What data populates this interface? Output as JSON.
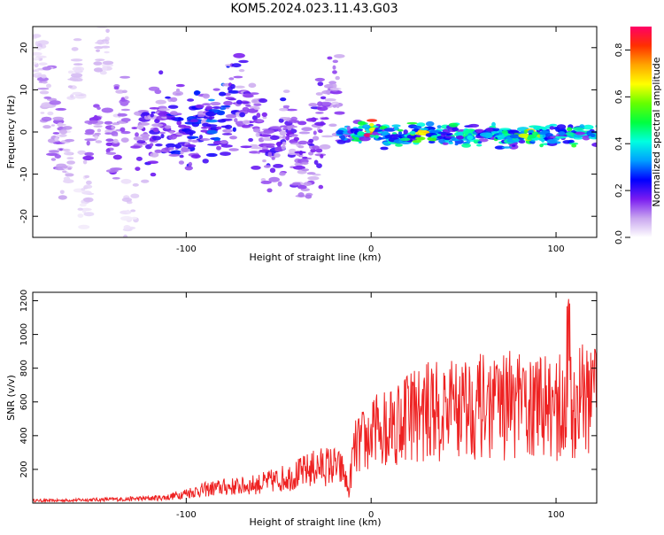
{
  "figure": {
    "title": "KOM5.2024.023.11.43.G03"
  },
  "chart_data": [
    {
      "type": "heatmap",
      "xlabel": "Height of straight line (km)",
      "ylabel": "Frequency (Hz)",
      "xlim": [
        -183,
        122
      ],
      "ylim": [
        -25,
        25
      ],
      "x_ticks": [
        -100,
        0,
        100
      ],
      "x_tick_labels": [
        "-100",
        "0",
        "100"
      ],
      "y_ticks": [
        -20,
        -10,
        0,
        10,
        20
      ],
      "y_tick_labels": [
        "-20",
        "-10",
        "0",
        "10",
        "20"
      ],
      "colorbar": {
        "label": "Normalized spectral amplitude",
        "range": [
          0,
          0.9
        ],
        "ticks": [
          0,
          0.2,
          0.4,
          0.6,
          0.8
        ],
        "tick_labels": [
          "0.0",
          "0.2",
          "0.4",
          "0.6",
          "0.8"
        ],
        "colormap": [
          "#ffffff",
          "#c9a6ef",
          "#7a1cf0",
          "#0000ff",
          "#00a0ff",
          "#00ffe0",
          "#00ff40",
          "#66ff00",
          "#ffff00",
          "#ffa500",
          "#ff3000",
          "#ff0066"
        ]
      },
      "cluster_ridges": [
        {
          "x": -180,
          "f": 18,
          "a": 0.05
        },
        {
          "x": -175,
          "f": 7,
          "a": 0.1
        },
        {
          "x": -170,
          "f": 0,
          "a": 0.12
        },
        {
          "x": -165,
          "f": -8,
          "a": 0.08
        },
        {
          "x": -160,
          "f": 12,
          "a": 0.06
        },
        {
          "x": -155,
          "f": -15,
          "a": 0.05
        },
        {
          "x": -150,
          "f": 2,
          "a": 0.14
        },
        {
          "x": -145,
          "f": 20,
          "a": 0.06
        },
        {
          "x": -140,
          "f": -3,
          "a": 0.15
        },
        {
          "x": -135,
          "f": 5,
          "a": 0.12
        },
        {
          "x": -130,
          "f": -20,
          "a": 0.05
        },
        {
          "x": -125,
          "f": 1,
          "a": 0.17
        },
        {
          "x": -120,
          "f": -2,
          "a": 0.18
        },
        {
          "x": -115,
          "f": 3,
          "a": 0.18
        },
        {
          "x": -110,
          "f": 0,
          "a": 0.2
        },
        {
          "x": -105,
          "f": 2,
          "a": 0.22
        },
        {
          "x": -100,
          "f": -1,
          "a": 0.2
        },
        {
          "x": -95,
          "f": 1,
          "a": 0.25
        },
        {
          "x": -90,
          "f": 3,
          "a": 0.2
        },
        {
          "x": -85,
          "f": 3,
          "a": 0.27
        },
        {
          "x": -80,
          "f": 5,
          "a": 0.25
        },
        {
          "x": -75,
          "f": 7,
          "a": 0.2
        },
        {
          "x": -70,
          "f": 8,
          "a": 0.18
        },
        {
          "x": -65,
          "f": 6,
          "a": 0.17
        },
        {
          "x": -60,
          "f": 0,
          "a": 0.16
        },
        {
          "x": -55,
          "f": -6,
          "a": 0.18
        },
        {
          "x": -50,
          "f": -3,
          "a": 0.2
        },
        {
          "x": -45,
          "f": 0,
          "a": 0.17
        },
        {
          "x": -40,
          "f": -5,
          "a": 0.16
        },
        {
          "x": -35,
          "f": -9,
          "a": 0.15
        },
        {
          "x": -30,
          "f": -2,
          "a": 0.17
        },
        {
          "x": -25,
          "f": 4,
          "a": 0.16
        },
        {
          "x": -20,
          "f": 9,
          "a": 0.13
        },
        {
          "x": -15,
          "f": -1,
          "a": 0.3
        },
        {
          "x": -10,
          "f": 0,
          "a": 0.35
        },
        {
          "x": -5,
          "f": 0,
          "a": 0.45
        },
        {
          "x": 0,
          "f": 0.5,
          "a": 0.78
        },
        {
          "x": 5,
          "f": 0,
          "a": 0.42
        },
        {
          "x": 10,
          "f": -2,
          "a": 0.38
        },
        {
          "x": 15,
          "f": -1,
          "a": 0.45
        },
        {
          "x": 20,
          "f": -1,
          "a": 0.42
        },
        {
          "x": 25,
          "f": -0.5,
          "a": 0.5
        },
        {
          "x": 30,
          "f": -0.5,
          "a": 0.62
        },
        {
          "x": 35,
          "f": -1,
          "a": 0.45
        },
        {
          "x": 40,
          "f": -1,
          "a": 0.4
        },
        {
          "x": 45,
          "f": -0.5,
          "a": 0.42
        },
        {
          "x": 50,
          "f": -1,
          "a": 0.4
        },
        {
          "x": 55,
          "f": -0.5,
          "a": 0.48
        },
        {
          "x": 60,
          "f": -1,
          "a": 0.4
        },
        {
          "x": 65,
          "f": -0.5,
          "a": 0.38
        },
        {
          "x": 70,
          "f": -1,
          "a": 0.42
        },
        {
          "x": 75,
          "f": -1,
          "a": 0.4
        },
        {
          "x": 80,
          "f": -0.8,
          "a": 0.45
        },
        {
          "x": 85,
          "f": -0.8,
          "a": 0.62
        },
        {
          "x": 90,
          "f": -1,
          "a": 0.55
        },
        {
          "x": 95,
          "f": -1.2,
          "a": 0.42
        },
        {
          "x": 100,
          "f": -1,
          "a": 0.35
        },
        {
          "x": 105,
          "f": -1,
          "a": 0.35
        },
        {
          "x": 110,
          "f": -0.8,
          "a": 0.45
        },
        {
          "x": 115,
          "f": -0.5,
          "a": 0.4
        },
        {
          "x": 120,
          "f": -0.5,
          "a": 0.38
        }
      ]
    },
    {
      "type": "line",
      "xlabel": "Height of straight line (km)",
      "ylabel": "SNR (v/v)",
      "xlim": [
        -183,
        122
      ],
      "ylim": [
        0,
        1250
      ],
      "x_ticks": [
        -100,
        0,
        100
      ],
      "x_tick_labels": [
        "-100",
        "0",
        "100"
      ],
      "y_ticks": [
        200,
        400,
        600,
        800,
        1000,
        1200
      ],
      "y_tick_labels": [
        "200",
        "400",
        "600",
        "800",
        "1000",
        "1200"
      ],
      "series": [
        {
          "color": "#ee2222",
          "x": [
            -183,
            -170,
            -160,
            -150,
            -140,
            -130,
            -120,
            -110,
            -100,
            -90,
            -80,
            -70,
            -60,
            -50,
            -40,
            -30,
            -25,
            -20,
            -15,
            -12,
            -10,
            -8,
            -5,
            0,
            5,
            10,
            20,
            30,
            40,
            50,
            60,
            70,
            80,
            90,
            100,
            105,
            110,
            115,
            122
          ],
          "y": [
            15,
            15,
            18,
            20,
            22,
            25,
            28,
            35,
            60,
            80,
            95,
            100,
            115,
            140,
            170,
            210,
            220,
            220,
            190,
            60,
            280,
            330,
            360,
            390,
            440,
            470,
            520,
            540,
            550,
            580,
            570,
            560,
            570,
            560,
            550,
            540,
            590,
            610,
            600
          ]
        }
      ]
    }
  ]
}
